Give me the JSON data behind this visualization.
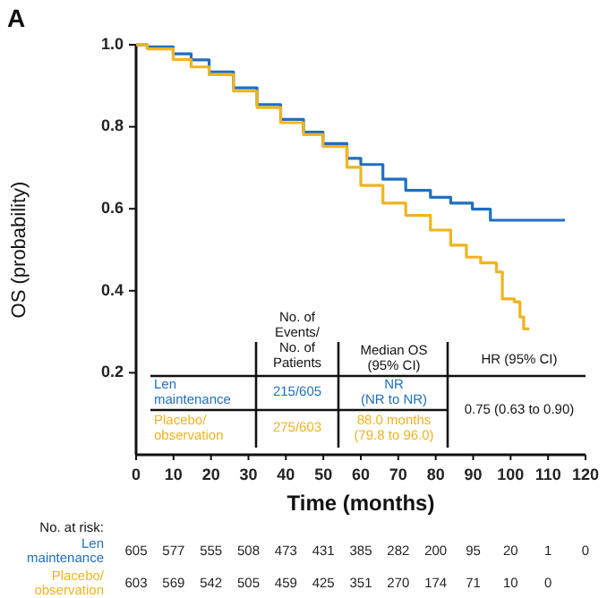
{
  "chart_data": {
    "type": "step",
    "title": "A",
    "xlabel": "Time (months)",
    "ylabel": "OS (probability)",
    "xlim": [
      0,
      120
    ],
    "ylim": [
      0,
      1
    ],
    "xticks": [
      0,
      10,
      20,
      30,
      40,
      50,
      60,
      70,
      80,
      90,
      100,
      110,
      120
    ],
    "yticks": [
      0.2,
      0.4,
      0.6,
      0.8,
      {
        "value": 1,
        "label": "1.0"
      }
    ],
    "series": [
      {
        "name": "Len maintenance",
        "color": "#1f6fc0",
        "x": [
          0,
          3,
          9.9,
          14.7,
          19.5,
          26,
          32.3,
          38.6,
          44.7,
          49.9,
          56.3,
          60,
          65.9,
          72,
          78.6,
          84,
          89.8,
          94.6,
          114.5
        ],
        "values": [
          1.0,
          0.995,
          0.978,
          0.963,
          0.934,
          0.895,
          0.854,
          0.818,
          0.787,
          0.759,
          0.723,
          0.708,
          0.672,
          0.645,
          0.628,
          0.614,
          0.599,
          0.572,
          0.572
        ]
      },
      {
        "name": "Placebo/ observation",
        "color": "#f0b41e",
        "x": [
          0,
          3,
          9.9,
          14.7,
          19.5,
          26,
          32.3,
          38.6,
          44.7,
          49.9,
          56.3,
          60,
          65.9,
          72,
          78.6,
          84,
          88.2,
          92,
          96.2,
          97.8,
          101,
          102.5,
          103.5,
          105
        ],
        "values": [
          1.0,
          0.99,
          0.964,
          0.946,
          0.927,
          0.887,
          0.847,
          0.81,
          0.781,
          0.752,
          0.701,
          0.657,
          0.614,
          0.584,
          0.548,
          0.511,
          0.482,
          0.468,
          0.446,
          0.38,
          0.373,
          0.336,
          0.307,
          0.307
        ]
      }
    ],
    "annotations": [
      "No. of Events/ No. of Patients",
      "Median OS (95% CI)",
      "HR (95% CI)",
      "215/605",
      "NR (NR to NR)",
      "275/603",
      "88.0 months (79.8 to 96.0)",
      "0.75 (0.63 to 0.90)",
      "No. at risk:",
      "605",
      "577",
      "555",
      "508",
      "473",
      "431",
      "385",
      "282",
      "200",
      "95",
      "20",
      "1",
      "0",
      "603",
      "569",
      "542",
      "505",
      "459",
      "425",
      "351",
      "270",
      "174",
      "71",
      "10",
      "0"
    ]
  }
}
